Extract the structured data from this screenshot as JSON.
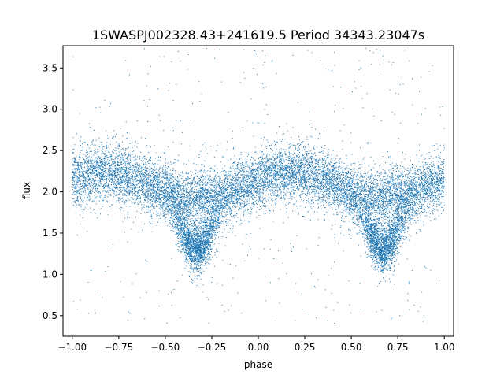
{
  "chart_data": {
    "type": "scatter",
    "title": "1SWASPJ002328.43+241619.5 Period 34343.23047s",
    "xlabel": "phase",
    "ylabel": "flux",
    "xlim": [
      -1.05,
      1.05
    ],
    "ylim": [
      0.25,
      3.77
    ],
    "x_ticks": [
      -1.0,
      -0.75,
      -0.5,
      -0.25,
      0.0,
      0.25,
      0.5,
      0.75,
      1.0
    ],
    "x_tick_labels": [
      "−1.00",
      "−0.75",
      "−0.50",
      "−0.25",
      "0.00",
      "0.25",
      "0.50",
      "0.75",
      "1.00"
    ],
    "y_ticks": [
      0.5,
      1.0,
      1.5,
      2.0,
      2.5,
      3.0,
      3.5
    ],
    "y_tick_labels": [
      "0.5",
      "1.0",
      "1.5",
      "2.0",
      "2.5",
      "3.0",
      "3.5"
    ],
    "grid": false,
    "legend": "none",
    "point_color": "#1f77b4",
    "x_range": [
      -1.0,
      1.0
    ],
    "trend": {
      "phase": [
        -1.0,
        -0.9,
        -0.8,
        -0.7,
        -0.6,
        -0.5,
        -0.4,
        -0.3,
        -0.2,
        -0.1,
        0.0,
        0.1,
        0.2,
        0.3,
        0.4,
        0.5,
        0.6,
        0.7,
        0.8,
        0.9,
        1.0
      ],
      "flux": [
        2.18,
        2.2,
        2.24,
        2.18,
        2.1,
        2.0,
        1.88,
        1.95,
        1.95,
        2.05,
        2.15,
        2.22,
        2.24,
        2.18,
        2.1,
        1.98,
        1.88,
        1.95,
        1.95,
        2.05,
        2.15
      ]
    },
    "dip": {
      "centers": [
        -0.33,
        0.67
      ],
      "floor_flux": 1.3,
      "half_width_phase": 0.13
    },
    "scatter_flux_std": 0.17,
    "outlier_flux_range": [
      0.4,
      3.75
    ]
  }
}
